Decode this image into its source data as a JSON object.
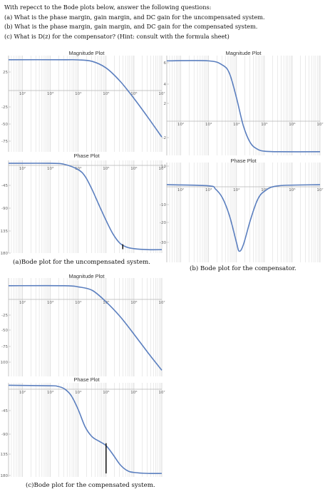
{
  "questions": {
    "intro": "With repecct to the Bode plots below, answer the following questions:",
    "a": "(a) What is the phase margin, gain margin, and DC gain for the uncompensated system.",
    "b": "(b) What is the phase margin, gain margin, and DC gain for the compensated system.",
    "c": "(c) What is D(z) for the compensator? (Hint: consult with the formula sheet)"
  },
  "captions": {
    "a": "(a)Bode plot for the uncompensated system.",
    "b": "(b) Bode plot for the compensator.",
    "c": "(c)Bode plot for the compensated system."
  },
  "colors": {
    "curve": "#5b7fbf",
    "grid": "#d6d6d6",
    "axis": "#b5b5b5",
    "marker": "#000000"
  },
  "chart_data": [
    {
      "id": "uncomp-mag",
      "type": "line",
      "title": "Magnitude Plot",
      "xscale": "log",
      "xlim": [
        1.5,
        7
      ],
      "ylim": [
        -85,
        32
      ],
      "xticks": [
        "10²",
        "10³",
        "10⁴",
        "10⁵",
        "10⁶",
        "10⁷"
      ],
      "yticks": [
        "25",
        "-25",
        "-50",
        "-75"
      ],
      "series": [
        {
          "x": [
            1.5,
            3.5,
            4.0,
            4.5,
            5.0,
            5.5,
            6.0,
            6.5,
            7.0
          ],
          "values": [
            27,
            27,
            26.8,
            25,
            17,
            1,
            -20,
            -43,
            -67
          ]
        }
      ]
    },
    {
      "id": "uncomp-phase",
      "type": "line",
      "title": "Phase Plot",
      "xscale": "log",
      "xlim": [
        1.5,
        7
      ],
      "ylim": [
        -185,
        5
      ],
      "xticks": [
        "10²",
        "10³",
        "10⁴",
        "10⁵",
        "10⁶",
        "10⁷"
      ],
      "yticks": [
        "-45",
        "-90",
        "-135",
        "-180"
      ],
      "marker": {
        "x": 5.6,
        "y_from": -167,
        "y_to": -177
      },
      "series": [
        {
          "x": [
            1.5,
            3.0,
            3.5,
            4.0,
            4.25,
            4.5,
            4.75,
            5.0,
            5.25,
            5.5,
            5.75,
            6.0,
            6.5,
            7.0
          ],
          "values": [
            -1,
            -1,
            -3,
            -14,
            -28,
            -55,
            -87,
            -118,
            -146,
            -165,
            -173,
            -176,
            -178,
            -178
          ]
        }
      ]
    },
    {
      "id": "comp-mag",
      "type": "line",
      "title": "Magnitude Plot",
      "xscale": "log",
      "xlim": [
        1.5,
        7
      ],
      "ylim": [
        -3,
        6.5
      ],
      "xticks": [
        "10²",
        "10³",
        "10⁴",
        "10⁵",
        "10⁶",
        "10⁷"
      ],
      "yticks": [
        "6",
        "4",
        "2",
        "-2"
      ],
      "series": [
        {
          "x": [
            1.5,
            3.0,
            3.5,
            3.75,
            4.0,
            4.25,
            4.5,
            4.75,
            5.0,
            5.5,
            7.0
          ],
          "values": [
            6,
            6,
            5.6,
            4.8,
            2.5,
            -0.2,
            -1.8,
            -2.4,
            -2.6,
            -2.65,
            -2.65
          ]
        }
      ]
    },
    {
      "id": "comp-phase",
      "type": "line",
      "title": "Phase Plot",
      "xscale": "log",
      "xlim": [
        1.5,
        7
      ],
      "ylim": [
        -35,
        10
      ],
      "xticks": [
        "10²",
        "10³",
        "10⁴",
        "10⁵",
        "10⁶",
        "10⁷"
      ],
      "yticks": [
        "10",
        "-10",
        "-20",
        "-30"
      ],
      "series": [
        {
          "x": [
            1.5,
            3.0,
            3.25,
            3.5,
            3.75,
            4.0,
            4.1,
            4.25,
            4.5,
            4.75,
            5.0,
            5.5,
            7.0
          ],
          "values": [
            0,
            -0.5,
            -2,
            -6,
            -14,
            -26,
            -30,
            -27,
            -16,
            -7,
            -3,
            -0.5,
            0
          ]
        }
      ]
    },
    {
      "id": "compensated-mag",
      "type": "line",
      "title": "Magnitude Plot",
      "xscale": "log",
      "xlim": [
        1.5,
        7
      ],
      "ylim": [
        -118,
        10
      ],
      "xticks": [
        "10²",
        "10³",
        "10⁴",
        "10⁵",
        "10⁶",
        "10⁷"
      ],
      "yticks": [
        "-25",
        "-50",
        "-75",
        "-100"
      ],
      "series": [
        {
          "x": [
            1.5,
            3.5,
            4.0,
            4.5,
            5.0,
            5.5,
            6.0,
            6.5,
            7.0
          ],
          "values": [
            0,
            0,
            -1.5,
            -6,
            -21,
            -40,
            -63,
            -87,
            -110
          ]
        }
      ]
    },
    {
      "id": "compensated-phase",
      "type": "line",
      "title": "Phase Plot",
      "xscale": "log",
      "xlim": [
        1.5,
        7
      ],
      "ylim": [
        -185,
        5
      ],
      "xticks": [
        "10²",
        "10³",
        "10⁴",
        "10⁵",
        "10⁶",
        "10⁷"
      ],
      "yticks": [
        "-45",
        "-90",
        "-135",
        "-180"
      ],
      "marker": {
        "x": 5.0,
        "y_from": -117,
        "y_to": -178
      },
      "series": [
        {
          "x": [
            1.5,
            3.0,
            3.25,
            3.5,
            3.75,
            4.0,
            4.25,
            4.5,
            4.75,
            5.0,
            5.25,
            5.5,
            5.75,
            6.0,
            6.5,
            7.0
          ],
          "values": [
            0,
            -1,
            -2,
            -7,
            -21,
            -49,
            -84,
            -104,
            -113,
            -122,
            -140,
            -160,
            -172,
            -176,
            -178,
            -178
          ]
        }
      ]
    }
  ]
}
